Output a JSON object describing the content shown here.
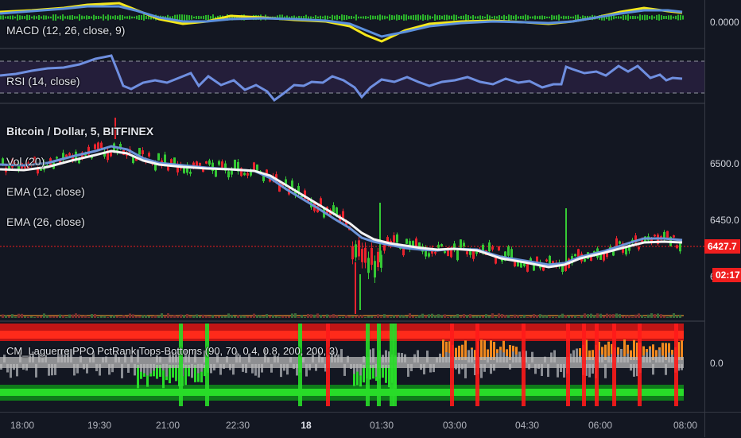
{
  "indicators": {
    "macd": "MACD (12, 26, close, 9)",
    "rsi": "RSI (14, close)",
    "symbol": "Bitcoin / Dollar, 5, BITFINEX",
    "vol": "Vol (20)",
    "ema_fast": "EMA (12, close)",
    "ema_slow": "EMA (26, close)",
    "laguerre": "CM_Laguerre PPO PctRank Tops-Bottoms (90, 70, 0.4, 0.8, 200, 200, 3)"
  },
  "price_axis": {
    "macd_zero": "0.0000",
    "p6500": "6500.0",
    "p6450": "6450.0",
    "last_price": "6427.7",
    "countdown": "02:17",
    "partial": "6",
    "lag_zero": "0.0"
  },
  "time_axis": [
    "18:00",
    "19:30",
    "21:00",
    "22:30",
    "18",
    "01:30",
    "03:00",
    "04:30",
    "06:00",
    "08:00"
  ],
  "colors": {
    "background": "#131722",
    "macd_line": "#f5e81c",
    "signal_line": "#5b8fdc",
    "histogram": "#2bb52b",
    "rsi_line": "#6f8fe0",
    "rsi_band": "#241e3a",
    "ema_fast": "#ffffff",
    "ema_slow": "#6b93d8",
    "candle_up": "#35c935",
    "candle_down": "#e8232d",
    "price_line": "#f01e1e",
    "tops": "#f2891e",
    "bottoms": "#28dc28"
  }
}
